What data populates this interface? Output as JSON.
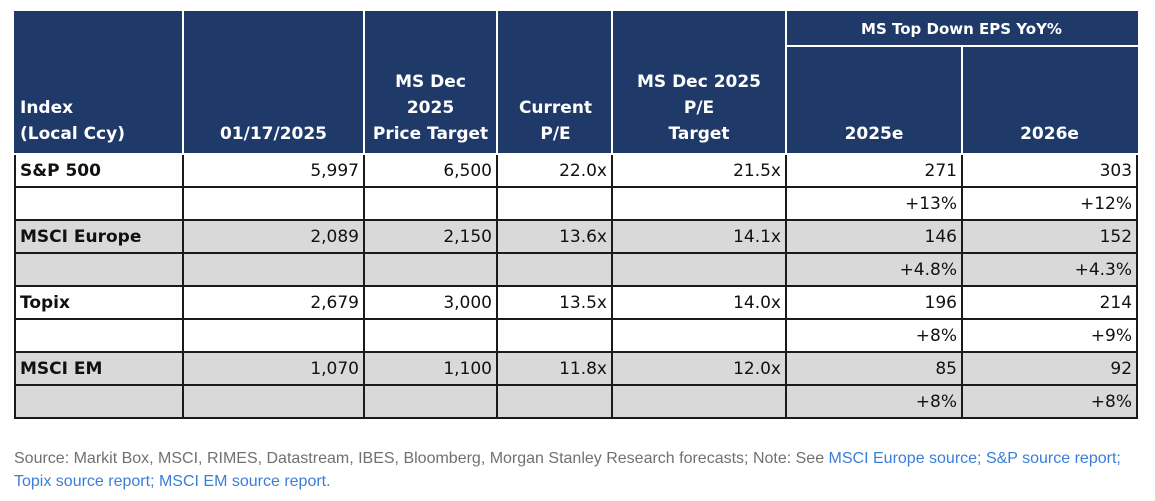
{
  "chart_data": {
    "type": "table",
    "headers": {
      "index": "Index\n(Local Ccy)",
      "date": "01/17/2025",
      "price_target": "MS Dec 2025\nPrice Target",
      "current_pe": "Current P/E",
      "target_pe": "MS Dec 2025 P/E\nTarget",
      "eps_group": "MS Top Down EPS YoY%",
      "eps_2025": "2025e",
      "eps_2026": "2026e"
    },
    "rows": [
      {
        "index": "S&P 500",
        "date_value": "5,997",
        "price_target": "6,500",
        "current_pe": "22.0x",
        "target_pe": "21.5x",
        "eps_2025": "271",
        "eps_2026": "303",
        "yoy_2025": "+13%",
        "yoy_2026": "+12%"
      },
      {
        "index": "MSCI Europe",
        "date_value": "2,089",
        "price_target": "2,150",
        "current_pe": "13.6x",
        "target_pe": "14.1x",
        "eps_2025": "146",
        "eps_2026": "152",
        "yoy_2025": "+4.8%",
        "yoy_2026": "+4.3%"
      },
      {
        "index": "Topix",
        "date_value": "2,679",
        "price_target": "3,000",
        "current_pe": "13.5x",
        "target_pe": "14.0x",
        "eps_2025": "196",
        "eps_2026": "214",
        "yoy_2025": "+8%",
        "yoy_2026": "+9%"
      },
      {
        "index": "MSCI EM",
        "date_value": "1,070",
        "price_target": "1,100",
        "current_pe": "11.8x",
        "target_pe": "12.0x",
        "eps_2025": "85",
        "eps_2026": "92",
        "yoy_2025": "+8%",
        "yoy_2026": "+8%"
      }
    ]
  },
  "source": {
    "prefix": "Source: Markit Box, MSCI, RIMES, Datastream, IBES, Bloomberg, Morgan Stanley Research forecasts; Note: See ",
    "link1": "MSCI Europe source; S&P source report;",
    "sep": " ",
    "link2": "Topix source report; MSCI EM source report."
  },
  "colors": {
    "header_bg": "#1f3a68",
    "shade_row": "#d9d9d9",
    "link": "#3b7dd8",
    "source_text": "#707070"
  }
}
